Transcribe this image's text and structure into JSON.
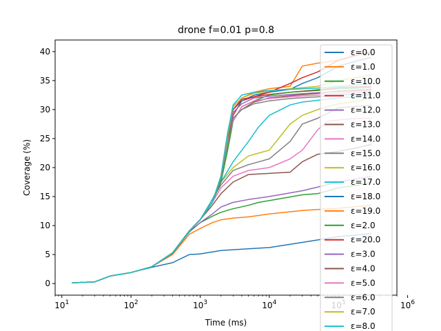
{
  "chart_data": {
    "type": "line",
    "title": "drone f=0.01 p=0.8",
    "xlabel": "Time (ms)",
    "ylabel": "Coverage (%)",
    "xscale": "log",
    "xlim": [
      8,
      700000
    ],
    "ylim": [
      -2,
      42
    ],
    "xticks": [
      {
        "value": 10,
        "base": "10",
        "exp": "1"
      },
      {
        "value": 100,
        "base": "10",
        "exp": "2"
      },
      {
        "value": 1000,
        "base": "10",
        "exp": "3"
      },
      {
        "value": 10000,
        "base": "10",
        "exp": "4"
      },
      {
        "value": 100000,
        "base": "10",
        "exp": "5"
      },
      {
        "value": 1000000,
        "base": "10",
        "exp": "6"
      }
    ],
    "yticks": [
      0,
      5,
      10,
      15,
      20,
      25,
      30,
      35,
      40
    ],
    "grid": false,
    "legend_position": "lower-right",
    "series": [
      {
        "name": "ε=0.0",
        "color": "#1f77b4",
        "x": [
          14,
          20,
          30,
          50,
          100,
          200,
          400,
          700,
          1000,
          2000,
          5000,
          10000,
          30000,
          100000,
          300000
        ],
        "y": [
          0.1,
          0.2,
          0.3,
          1.3,
          1.9,
          2.8,
          3.6,
          5.0,
          5.1,
          5.7,
          6.0,
          6.2,
          7.1,
          8.1,
          8.6
        ]
      },
      {
        "name": "ε=1.0",
        "color": "#ff7f0e",
        "x": [
          14,
          20,
          30,
          50,
          100,
          200,
          400,
          700,
          1000,
          1500,
          2000,
          3000,
          5000,
          10000,
          30000,
          100000,
          300000
        ],
        "y": [
          0.1,
          0.2,
          0.3,
          1.3,
          1.9,
          2.9,
          5.0,
          8.5,
          9.5,
          10.5,
          11.0,
          11.3,
          11.5,
          12.0,
          12.6,
          13.0,
          13.5
        ]
      },
      {
        "name": "ε=10.0",
        "color": "#2ca02c",
        "x": [
          14,
          20,
          30,
          50,
          100,
          200,
          400,
          700,
          1000,
          1500,
          2000,
          3000,
          5000,
          7000,
          10000,
          30000,
          50000,
          100000,
          200000,
          300000
        ],
        "y": [
          0.1,
          0.2,
          0.3,
          1.3,
          1.9,
          2.9,
          5.2,
          8.9,
          10.5,
          11.6,
          12.3,
          12.9,
          13.5,
          14.0,
          14.3,
          15.3,
          15.5,
          16.5,
          17.0,
          17.5
        ]
      },
      {
        "name": "ε=11.0",
        "color": "#d62728",
        "x": [
          14,
          20,
          30,
          50,
          100,
          200,
          400,
          700,
          1000,
          1500,
          2000,
          2500,
          3000,
          4000,
          6000,
          10000,
          20000,
          50000,
          100000,
          300000
        ],
        "y": [
          0.1,
          0.2,
          0.3,
          1.3,
          1.9,
          2.9,
          5.3,
          9.1,
          11.0,
          14.0,
          18.0,
          25.0,
          29.0,
          31.5,
          32.2,
          32.6,
          33.0,
          33.4,
          33.8,
          34.0
        ]
      },
      {
        "name": "ε=12.0",
        "color": "#9467bd",
        "x": [
          14,
          20,
          30,
          50,
          100,
          200,
          400,
          700,
          1000,
          1500,
          2000,
          3000,
          5000,
          10000,
          30000,
          100000,
          300000
        ],
        "y": [
          0.1,
          0.2,
          0.3,
          1.3,
          1.9,
          2.9,
          5.2,
          9.0,
          10.5,
          12.0,
          13.2,
          14.0,
          14.5,
          15.0,
          16.0,
          17.5,
          18.5
        ]
      },
      {
        "name": "ε=13.0",
        "color": "#8c564b",
        "x": [
          14,
          20,
          30,
          50,
          100,
          200,
          400,
          700,
          1000,
          1500,
          2000,
          3000,
          5000,
          10000,
          20000,
          30000,
          50000,
          100000,
          200000,
          300000
        ],
        "y": [
          0.1,
          0.2,
          0.3,
          1.3,
          1.9,
          2.9,
          5.3,
          9.1,
          11.0,
          13.5,
          15.5,
          17.5,
          18.8,
          19.0,
          19.2,
          21.0,
          22.3,
          22.8,
          23.5,
          24.0
        ]
      },
      {
        "name": "ε=14.0",
        "color": "#e377c2",
        "x": [
          14,
          20,
          30,
          50,
          100,
          200,
          400,
          700,
          1000,
          1500,
          2000,
          3000,
          5000,
          10000,
          20000,
          30000,
          50000,
          70000,
          100000,
          200000,
          300000
        ],
        "y": [
          0.1,
          0.2,
          0.3,
          1.3,
          1.9,
          2.9,
          5.3,
          9.1,
          11.0,
          14.0,
          16.5,
          18.5,
          19.5,
          20.0,
          21.5,
          23.0,
          26.5,
          28.0,
          28.2,
          28.5,
          28.5
        ]
      },
      {
        "name": "ε=15.0",
        "color": "#7f7f7f",
        "x": [
          14,
          20,
          30,
          50,
          100,
          200,
          400,
          700,
          1000,
          1500,
          2000,
          3000,
          5000,
          10000,
          20000,
          30000,
          50000,
          100000,
          200000,
          300000
        ],
        "y": [
          0.1,
          0.2,
          0.3,
          1.3,
          1.9,
          2.9,
          5.3,
          9.1,
          11.0,
          14.5,
          17.0,
          19.5,
          20.5,
          21.5,
          24.5,
          27.5,
          28.5,
          30.3,
          30.6,
          30.8
        ]
      },
      {
        "name": "ε=16.0",
        "color": "#bcbd22",
        "x": [
          14,
          20,
          30,
          50,
          100,
          200,
          400,
          700,
          1000,
          1500,
          2000,
          3000,
          5000,
          7000,
          10000,
          20000,
          30000,
          50000,
          100000,
          200000,
          300000
        ],
        "y": [
          0.1,
          0.2,
          0.3,
          1.3,
          1.9,
          2.9,
          5.3,
          9.1,
          11.0,
          14.5,
          17.5,
          20.0,
          22.0,
          22.5,
          23.0,
          27.5,
          29.0,
          30.0,
          31.0,
          31.5,
          32.0
        ]
      },
      {
        "name": "ε=17.0",
        "color": "#17becf",
        "x": [
          14,
          20,
          30,
          50,
          100,
          200,
          400,
          700,
          1000,
          1500,
          2000,
          3000,
          5000,
          7000,
          10000,
          20000,
          30000,
          50000,
          100000,
          200000,
          300000
        ],
        "y": [
          0.1,
          0.2,
          0.3,
          1.3,
          1.9,
          2.9,
          5.3,
          9.1,
          11.0,
          14.5,
          17.5,
          21.0,
          24.5,
          27.0,
          29.0,
          30.8,
          31.3,
          31.6,
          32.0,
          32.3,
          32.6
        ]
      },
      {
        "name": "ε=18.0",
        "color": "#1f77b4",
        "x": [
          14,
          20,
          30,
          50,
          100,
          200,
          400,
          700,
          1000,
          1500,
          2000,
          2500,
          3000,
          4000,
          6000,
          10000,
          20000,
          30000,
          50000,
          100000,
          200000,
          300000
        ],
        "y": [
          0.1,
          0.2,
          0.3,
          1.3,
          1.9,
          2.9,
          5.3,
          9.1,
          11.0,
          14.0,
          18.0,
          25.5,
          30.0,
          31.5,
          32.5,
          33.0,
          33.5,
          34.5,
          35.5,
          37.5,
          38.5,
          39.0
        ]
      },
      {
        "name": "ε=19.0",
        "color": "#ff7f0e",
        "x": [
          14,
          20,
          30,
          50,
          100,
          200,
          400,
          700,
          1000,
          1500,
          2000,
          2500,
          3000,
          4000,
          6000,
          10000,
          20000,
          30000,
          50000,
          100000,
          200000,
          300000
        ],
        "y": [
          0.1,
          0.2,
          0.3,
          1.3,
          1.9,
          2.9,
          5.3,
          9.1,
          11.0,
          14.0,
          18.5,
          26.0,
          30.5,
          32.0,
          33.0,
          33.6,
          34.0,
          37.5,
          38.0,
          38.5,
          39.5,
          40.0
        ]
      },
      {
        "name": "ε=2.0",
        "color": "#2ca02c",
        "x": [
          14,
          20,
          30,
          50,
          100,
          200,
          400,
          700,
          1000,
          1500,
          2000,
          2500,
          3000,
          4000,
          6000,
          10000,
          20000,
          50000,
          100000,
          300000
        ],
        "y": [
          0.1,
          0.2,
          0.3,
          1.3,
          1.9,
          2.9,
          5.3,
          9.1,
          11.0,
          14.0,
          17.5,
          23.0,
          28.0,
          30.5,
          31.5,
          32.5,
          33.0,
          33.3,
          33.6,
          33.8
        ]
      },
      {
        "name": "ε=20.0",
        "color": "#d62728",
        "x": [
          14,
          20,
          30,
          50,
          100,
          200,
          400,
          700,
          1000,
          1500,
          2000,
          2500,
          3000,
          4000,
          6000,
          10000,
          20000,
          30000,
          50000,
          100000,
          200000,
          300000
        ],
        "y": [
          0.1,
          0.2,
          0.3,
          1.3,
          1.9,
          2.9,
          5.3,
          9.1,
          11.0,
          14.0,
          18.5,
          26.0,
          30.0,
          31.8,
          32.2,
          33.0,
          34.5,
          35.5,
          36.5,
          38.5,
          39.5,
          39.8
        ]
      },
      {
        "name": "ε=3.0",
        "color": "#9467bd",
        "x": [
          14,
          20,
          30,
          50,
          100,
          200,
          400,
          700,
          1000,
          1500,
          2000,
          2500,
          3000,
          4000,
          6000,
          10000,
          20000,
          50000,
          100000,
          300000
        ],
        "y": [
          0.1,
          0.2,
          0.3,
          1.3,
          1.9,
          2.9,
          5.3,
          9.1,
          11.0,
          14.0,
          18.0,
          25.0,
          29.5,
          31.0,
          32.0,
          32.3,
          32.6,
          32.9,
          33.1,
          33.3
        ]
      },
      {
        "name": "ε=4.0",
        "color": "#8c564b",
        "x": [
          14,
          20,
          30,
          50,
          100,
          200,
          400,
          700,
          1000,
          1500,
          2000,
          2500,
          3000,
          4000,
          6000,
          10000,
          20000,
          50000,
          100000,
          300000
        ],
        "y": [
          0.1,
          0.2,
          0.3,
          1.3,
          1.9,
          2.9,
          5.3,
          9.1,
          11.0,
          14.0,
          18.5,
          25.0,
          28.5,
          30.0,
          31.3,
          32.0,
          32.4,
          32.8,
          33.2,
          33.5
        ]
      },
      {
        "name": "ε=5.0",
        "color": "#e377c2",
        "x": [
          14,
          20,
          30,
          50,
          100,
          200,
          400,
          700,
          1000,
          1500,
          2000,
          2500,
          3000,
          4000,
          6000,
          10000,
          20000,
          50000,
          100000,
          300000
        ],
        "y": [
          0.1,
          0.2,
          0.3,
          1.3,
          1.9,
          2.9,
          5.3,
          9.1,
          11.0,
          14.0,
          18.0,
          24.5,
          28.0,
          30.5,
          31.5,
          31.9,
          32.2,
          32.5,
          32.8,
          33.0
        ]
      },
      {
        "name": "ε=6.0",
        "color": "#7f7f7f",
        "x": [
          14,
          20,
          30,
          50,
          100,
          200,
          400,
          700,
          1000,
          1500,
          2000,
          2500,
          3000,
          4000,
          6000,
          10000,
          20000,
          50000,
          100000,
          300000
        ],
        "y": [
          0.1,
          0.2,
          0.3,
          1.3,
          1.9,
          2.9,
          5.3,
          9.1,
          11.0,
          14.0,
          18.0,
          24.0,
          28.5,
          30.0,
          31.0,
          31.5,
          31.9,
          32.2,
          32.5,
          32.7
        ]
      },
      {
        "name": "ε=7.0",
        "color": "#bcbd22",
        "x": [
          14,
          20,
          30,
          50,
          100,
          200,
          400,
          700,
          1000,
          1500,
          2000,
          2500,
          3000,
          4000,
          6000,
          10000,
          20000,
          50000,
          100000,
          300000
        ],
        "y": [
          0.1,
          0.2,
          0.3,
          1.3,
          1.9,
          2.9,
          5.3,
          9.1,
          11.0,
          14.0,
          18.5,
          25.5,
          30.5,
          32.0,
          32.8,
          33.2,
          33.6,
          34.0,
          35.0,
          36.0
        ]
      },
      {
        "name": "ε=8.0",
        "color": "#17becf",
        "x": [
          14,
          20,
          30,
          50,
          100,
          200,
          400,
          700,
          1000,
          1500,
          2000,
          2500,
          3000,
          4000,
          6000,
          10000,
          20000,
          50000,
          100000,
          300000
        ],
        "y": [
          0.1,
          0.2,
          0.3,
          1.3,
          1.9,
          2.9,
          5.3,
          9.1,
          11.0,
          14.0,
          18.5,
          26.0,
          30.8,
          32.5,
          33.0,
          33.3,
          33.5,
          33.7,
          34.0,
          34.5
        ]
      }
    ]
  }
}
